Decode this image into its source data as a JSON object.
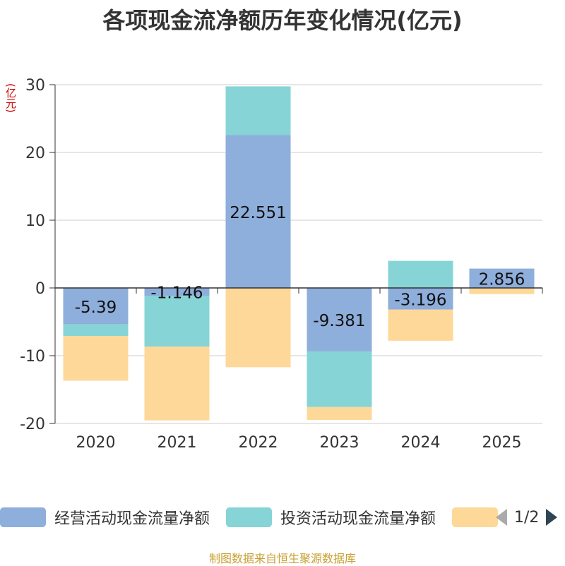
{
  "chart_data": {
    "type": "bar",
    "stacked": true,
    "title": "各项现金流净额历年变化情况(亿元)",
    "ylabel": "(亿元)",
    "categories": [
      "2020",
      "2021",
      "2022",
      "2023",
      "2024",
      "2025"
    ],
    "ylim": [
      -20,
      30
    ],
    "yticks": [
      30,
      20,
      10,
      0,
      -10,
      -20
    ],
    "series": [
      {
        "name": "经营活动现金流量净额",
        "color": "#8eaedb",
        "values": [
          -5.39,
          -1.146,
          22.551,
          -9.381,
          -3.196,
          2.856
        ],
        "labels": [
          "-5.39",
          "-1.146",
          "22.551",
          "-9.381",
          "-3.196",
          "2.856"
        ]
      },
      {
        "name": "投资活动现金流量净额",
        "color": "#86d4d6",
        "values": [
          -1.7,
          -7.5,
          7.2,
          -8.2,
          4.0,
          0.0
        ]
      },
      {
        "name": "",
        "color": "#fdd898",
        "values": [
          -6.6,
          -10.9,
          -11.7,
          -1.9,
          -4.6,
          -0.9
        ]
      }
    ]
  },
  "legend": {
    "items": [
      {
        "label": "经营活动现金流量净额",
        "color": "#8eaedb"
      },
      {
        "label": "投资活动现金流量净额",
        "color": "#86d4d6"
      },
      {
        "label": "",
        "color": "#fdd898"
      }
    ],
    "page": "1/2"
  },
  "footer": "制图数据来自恒生聚源数据库"
}
